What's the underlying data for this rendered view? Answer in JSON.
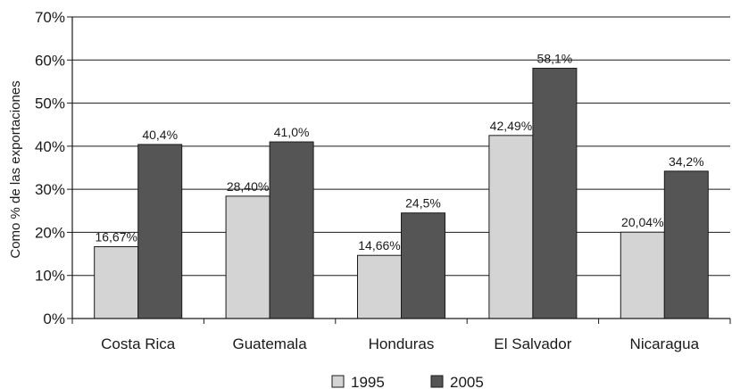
{
  "chart_data": {
    "type": "bar",
    "title": "",
    "xlabel": "",
    "ylabel": "Como % de las exportaciones",
    "ylim": [
      0,
      70
    ],
    "yticks": [
      0,
      10,
      20,
      30,
      40,
      50,
      60,
      70
    ],
    "ytick_labels": [
      "0%",
      "10%",
      "20%",
      "30%",
      "40%",
      "50%",
      "60%",
      "70%"
    ],
    "grid": true,
    "legend_position": "bottom",
    "categories": [
      "Costa Rica",
      "Guatemala",
      "Honduras",
      "El Salvador",
      "Nicaragua"
    ],
    "series": [
      {
        "name": "1995",
        "color": "#d4d4d4",
        "values": [
          16.67,
          28.4,
          14.66,
          42.49,
          20.04
        ],
        "labels": [
          "16,67%",
          "28,40%",
          "14,66%",
          "42,49%",
          "20,04%"
        ]
      },
      {
        "name": "2005",
        "color": "#555555",
        "values": [
          40.4,
          41.0,
          24.5,
          58.1,
          34.2
        ],
        "labels": [
          "40,4%",
          "41,0%",
          "24,5%",
          "58,1%",
          "34,2%"
        ]
      }
    ]
  }
}
